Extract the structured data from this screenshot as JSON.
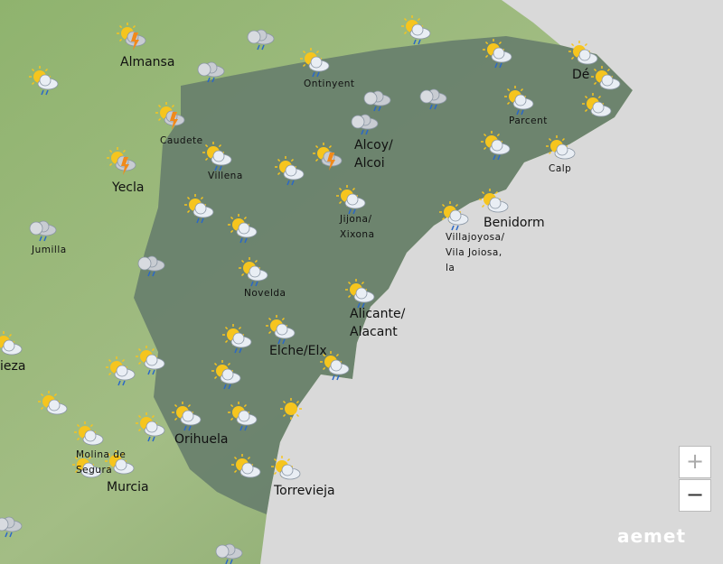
{
  "map": {
    "towns": [
      {
        "lines": [
          "Almansa"
        ]
      },
      {
        "lines": [
          "Ontinyent"
        ]
      },
      {
        "lines": [
          "Caudete"
        ]
      },
      {
        "lines": [
          "Villena"
        ]
      },
      {
        "lines": [
          "Alcoy/",
          "Alcoi"
        ]
      },
      {
        "lines": [
          "Yecla"
        ]
      },
      {
        "lines": [
          "Jumilla"
        ]
      },
      {
        "lines": [
          "Jijona/",
          "Xixona"
        ]
      },
      {
        "lines": [
          "Villajoyosa/",
          "Vila Joiosa,",
          "la"
        ]
      },
      {
        "lines": [
          "Benidorm"
        ]
      },
      {
        "lines": [
          "Parcent"
        ]
      },
      {
        "lines": [
          "Calp"
        ]
      },
      {
        "lines": [
          "Dé"
        ]
      },
      {
        "lines": [
          "Novelda"
        ]
      },
      {
        "lines": [
          "Alicante/",
          "Alacant"
        ]
      },
      {
        "lines": [
          "Elche/Elx"
        ]
      },
      {
        "lines": [
          "ieza"
        ]
      },
      {
        "lines": [
          "Orihuela"
        ]
      },
      {
        "lines": [
          "Molina de",
          "Segura"
        ]
      },
      {
        "lines": [
          "Murcia"
        ]
      },
      {
        "lines": [
          "Torrevieja"
        ]
      }
    ],
    "zoom": {
      "in": "+",
      "out": "−"
    },
    "logo": "aemet"
  }
}
